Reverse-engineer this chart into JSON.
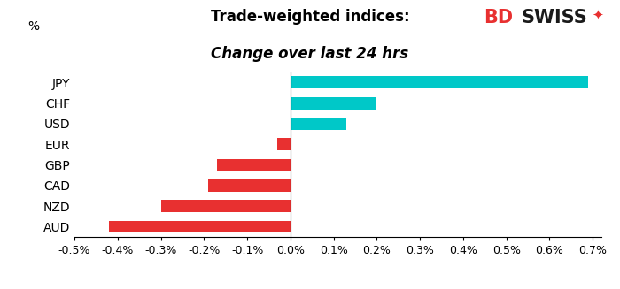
{
  "title_line1": "Trade-weighted indices:",
  "title_line2": "Change over last 24 hrs",
  "ylabel_text": "%",
  "categories": [
    "JPY",
    "CHF",
    "USD",
    "EUR",
    "GBP",
    "CAD",
    "NZD",
    "AUD"
  ],
  "values": [
    0.0069,
    0.002,
    0.0013,
    -0.0003,
    -0.0017,
    -0.0019,
    -0.003,
    -0.0042
  ],
  "colors": [
    "#00C8C8",
    "#00C8C8",
    "#00C8C8",
    "#E83030",
    "#E83030",
    "#E83030",
    "#E83030",
    "#E83030"
  ],
  "xlim": [
    -0.005,
    0.0072
  ],
  "xticks": [
    -0.005,
    -0.004,
    -0.003,
    -0.002,
    -0.001,
    0.0,
    0.001,
    0.002,
    0.003,
    0.004,
    0.005,
    0.006,
    0.007
  ],
  "xtick_labels": [
    "-0.5%",
    "-0.4%",
    "-0.3%",
    "-0.2%",
    "-0.1%",
    "0.0%",
    "0.1%",
    "0.2%",
    "0.3%",
    "0.4%",
    "0.5%",
    "0.6%",
    "0.7%"
  ],
  "bg_color": "#FFFFFF",
  "bar_height": 0.6,
  "title_fontsize": 12,
  "subtitle_fontsize": 12,
  "tick_fontsize": 9,
  "ylabel_fontsize": 10,
  "category_fontsize": 10,
  "logo_bd_color": "#E83030",
  "logo_swiss_color": "#1a1a1a",
  "logo_fontsize": 15
}
